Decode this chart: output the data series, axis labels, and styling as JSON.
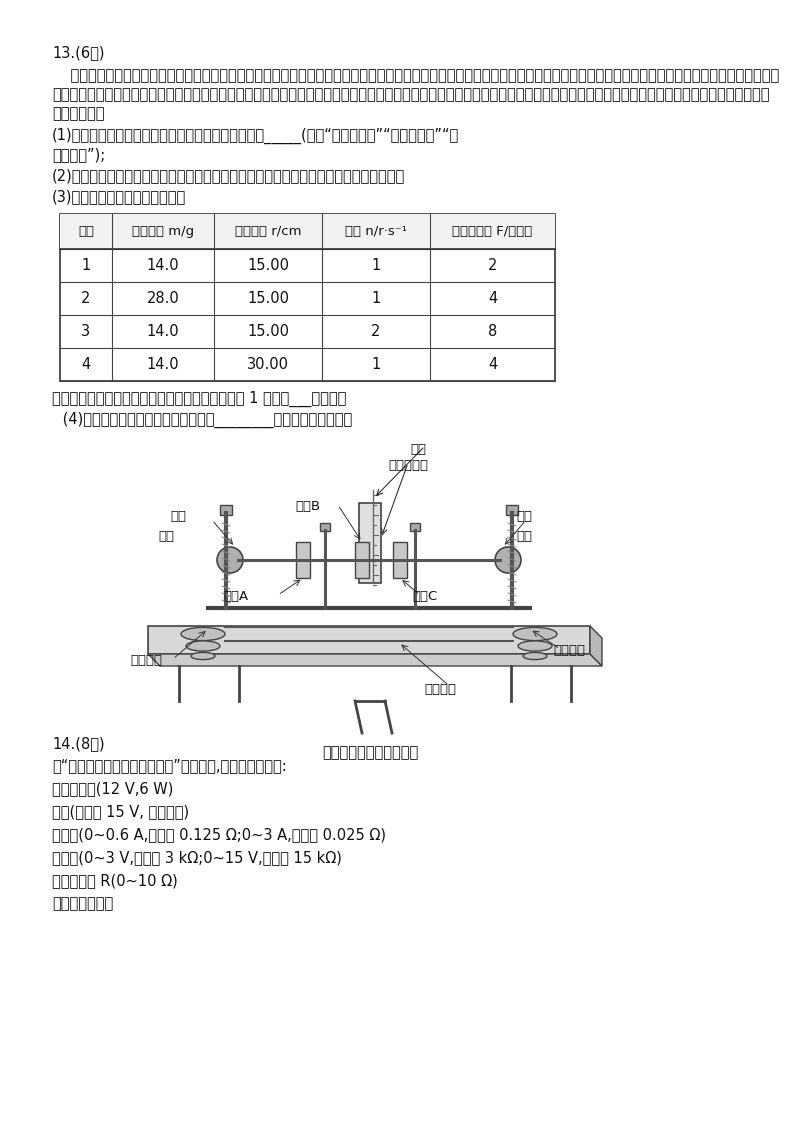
{
  "background_color": "#ffffff",
  "title": "13.(6分)",
  "para1_lines": [
    "    用如图所示的向心力演示器探究向心力大小的表达式。匀速转动手柄，可以使变速塔轮以及长槽和短槽随之匀速转动，槽内的小球也随着做匀速圆周运动。使小球做匀速塔轮以及长槽和",
    "短槽随之匀速转动，槽内的小球也随着做匀速圆周运动。使小球做匀速圆周运动的向心力由横臂的挡板对小球的压力提供，球对挡板的反作用力通过横臂的杠杆作用使弹簧测力套筒下降从",
    "而露出标尺。"
  ],
  "sub1_lines": [
    "(1)为了探究向心力大小与物体质量的关系，可以采用_____(选填“等效替代法”“控制变量法”“理",
    "想模型法”);"
  ],
  "sub2": "(2)根据标尺上露出的红白相间等分标记，可以粗略计算出两个球所受的向心力大小之比；",
  "sub3": "(3)通过实验得到如下表的数据：",
  "table_headers": [
    "组数",
    "球的质量 m/g",
    "转动半径 r/cm",
    "转速 n/r·s⁻¹",
    "向心力大小 F/红格数"
  ],
  "table_data": [
    [
      "1",
      "14.0",
      "15.00",
      "1",
      "2"
    ],
    [
      "2",
      "28.0",
      "15.00",
      "1",
      "4"
    ],
    [
      "3",
      "14.0",
      "15.00",
      "2",
      "8"
    ],
    [
      "4",
      "14.0",
      "30.00",
      "1",
      "4"
    ]
  ],
  "after_table": "为研究向心力大小跟转速的关系，应比较表中的第 1 组和第___组数据；",
  "sub4": " (4)你认为本实验中产生误差的原因有________（写出一条即可）。",
  "q14_title": "14.(8分)",
  "q14_intro": "在“描绘小灯泡的伏安特性曲线”的实验中,使用的器材如下:",
  "q14_items": [
    "待测小灯泡(12 V,6 W)",
    "电源(电动势 15 V, 内阔不计)",
    "电流表(0~0.6 A,内阔约 0.125 Ω;0~3 A,内阔约 0.025 Ω)",
    "电压表(0~3 V,内阔约 3 kΩ;0~15 V,内阔约 15 kΩ)",
    "滑动变阔器 R(0~10 Ω)",
    "开关及导线若干"
  ]
}
